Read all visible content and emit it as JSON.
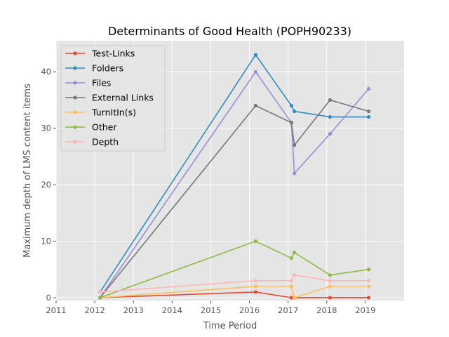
{
  "chart_data": {
    "type": "line",
    "title": "Determinants of Good Health (POPH90233)",
    "xlabel": "Time Period",
    "ylabel": "Maximum depth of LMS content items",
    "xlim": [
      2011,
      2020
    ],
    "ylim": [
      -0.5,
      45.5
    ],
    "xticks": [
      "2011",
      "2012",
      "2013",
      "2014",
      "2015",
      "2016",
      "2017",
      "2018",
      "2019"
    ],
    "yticks": [
      "0",
      "10",
      "20",
      "30",
      "40"
    ],
    "grid": true,
    "legend_position": "upper-left",
    "x_dates": [
      "2012-02-20",
      "2016-02-29",
      "2017-02-01",
      "2017-03-01",
      "2018-02-01",
      "2019-02-01"
    ],
    "series": [
      {
        "name": "Test-Links",
        "color": "#e24a33",
        "values": [
          0,
          1,
          0,
          0,
          0,
          0
        ]
      },
      {
        "name": "Folders",
        "color": "#348abd",
        "values": [
          1,
          43,
          34,
          33,
          32,
          32
        ]
      },
      {
        "name": "Files",
        "color": "#988ed5",
        "values": [
          0,
          40,
          31,
          22,
          29,
          37
        ]
      },
      {
        "name": "External Links",
        "color": "#777777",
        "values": [
          0,
          34,
          31,
          27,
          35,
          33
        ]
      },
      {
        "name": "TurnItIn(s)",
        "color": "#fbc15e",
        "values": [
          0,
          2,
          2,
          0,
          2,
          2
        ]
      },
      {
        "name": "Other",
        "color": "#8eba42",
        "values": [
          0,
          10,
          7,
          8,
          4,
          5
        ]
      },
      {
        "name": "Depth",
        "color": "#ffb5b8",
        "values": [
          1,
          3,
          3,
          4,
          3,
          3
        ]
      }
    ]
  }
}
